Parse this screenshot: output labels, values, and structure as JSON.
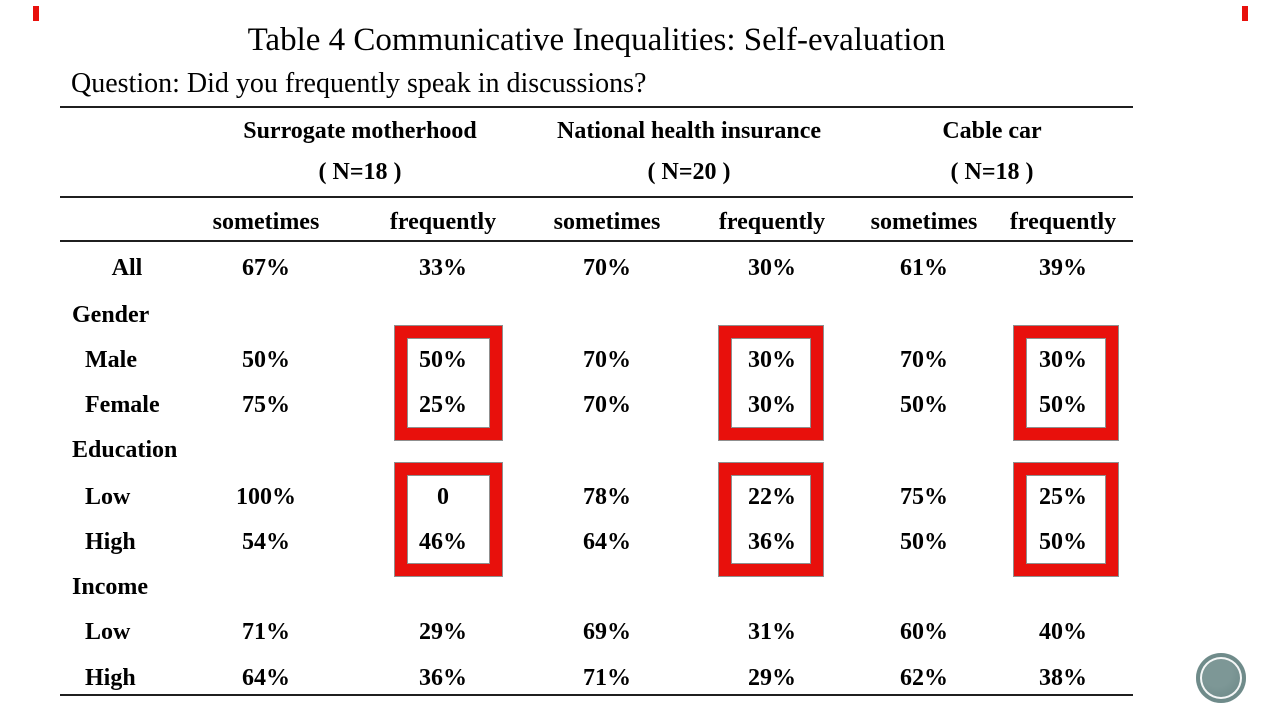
{
  "slide": {
    "title": "Table 4 Communicative Inequalities: Self-evaluation",
    "question": "Question: Did you frequently speak in discussions?"
  },
  "table": {
    "groups": [
      {
        "label": "Surrogate motherhood",
        "n": "( N=18 )"
      },
      {
        "label": "National health insurance",
        "n": "( N=20 )"
      },
      {
        "label": "Cable car",
        "n": "( N=18 )"
      }
    ],
    "subheaders": [
      "sometimes",
      "frequently",
      "sometimes",
      "frequently",
      "sometimes",
      "frequently"
    ],
    "rows": [
      {
        "label": "All",
        "type": "data",
        "values": [
          "67%",
          "33%",
          "70%",
          "30%",
          "61%",
          "39%"
        ]
      },
      {
        "label": "Gender",
        "type": "section",
        "values": []
      },
      {
        "label": "Male",
        "type": "data",
        "values": [
          "50%",
          "50%",
          "70%",
          "30%",
          "70%",
          "30%"
        ]
      },
      {
        "label": "Female",
        "type": "data",
        "values": [
          "75%",
          "25%",
          "70%",
          "30%",
          "50%",
          "50%"
        ]
      },
      {
        "label": "Education",
        "type": "section",
        "values": []
      },
      {
        "label": "Low",
        "type": "data",
        "values": [
          "100%",
          "0",
          "78%",
          "22%",
          "75%",
          "25%"
        ]
      },
      {
        "label": "High",
        "type": "data",
        "values": [
          "54%",
          "46%",
          "64%",
          "36%",
          "50%",
          "50%"
        ]
      },
      {
        "label": "Income",
        "type": "section",
        "values": []
      },
      {
        "label": "Low",
        "type": "data",
        "values": [
          "71%",
          "29%",
          "69%",
          "31%",
          "60%",
          "40%"
        ]
      },
      {
        "label": "High",
        "type": "data",
        "values": [
          "64%",
          "36%",
          "71%",
          "29%",
          "62%",
          "38%"
        ]
      }
    ],
    "highlights": {
      "description": "red boxes around frequently columns of Gender and Education rows in all three groups",
      "color": "#e8100c"
    }
  },
  "decorations": {
    "accent_color": "#e8100c",
    "logo_color": "#6f8b8a"
  }
}
